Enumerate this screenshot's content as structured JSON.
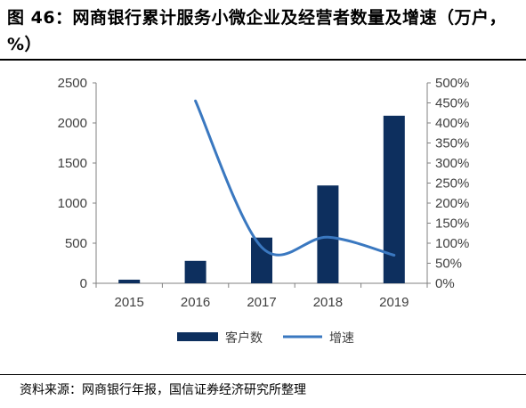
{
  "title": "图 46：网商银行累计服务小微企业及经营者数量及增速（万户，%）",
  "source": "资料来源：网商银行年报，国信证券经济研究所整理",
  "colors": {
    "bar": "#0d2f5e",
    "line": "#3a78c0",
    "axis": "#808080",
    "text": "#404040"
  },
  "chart_data": {
    "type": "bar",
    "categories": [
      "2015",
      "2016",
      "2017",
      "2018",
      "2019"
    ],
    "series": [
      {
        "name": "客户数",
        "type": "bar",
        "axis": "left",
        "values": [
          45,
          280,
          570,
          1220,
          2090
        ]
      },
      {
        "name": "增速",
        "type": "line",
        "axis": "right",
        "values": [
          null,
          455,
          90,
          115,
          70
        ]
      }
    ],
    "y_left": {
      "min": 0,
      "max": 2500,
      "ticks": [
        "0",
        "500",
        "1000",
        "1500",
        "2000",
        "2500"
      ]
    },
    "y_right": {
      "min": 0,
      "max": 500,
      "ticks": [
        "0%",
        "50%",
        "100%",
        "150%",
        "200%",
        "250%",
        "300%",
        "350%",
        "400%",
        "450%",
        "500%"
      ]
    },
    "grid": false,
    "legend_position": "bottom"
  }
}
